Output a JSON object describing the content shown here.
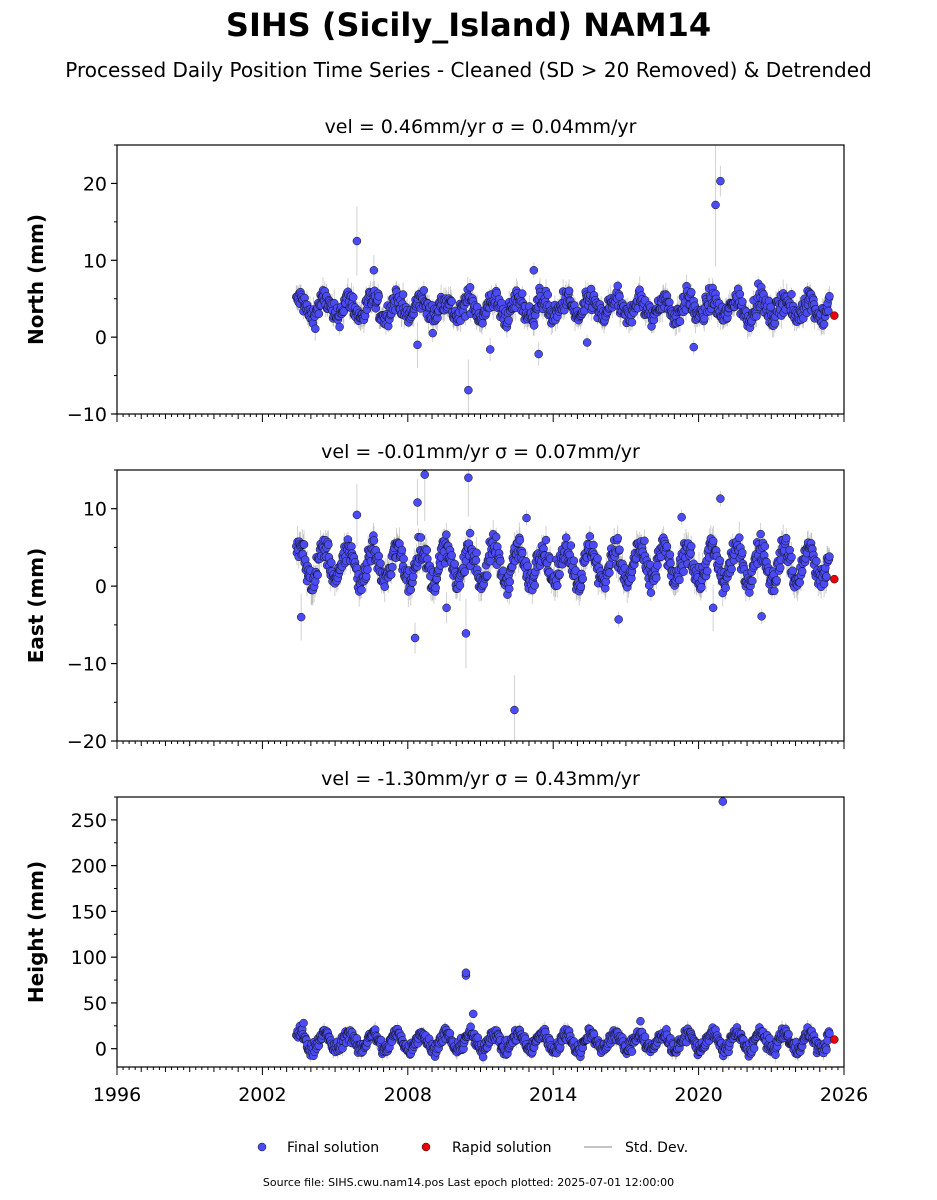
{
  "title": "SIHS (Sicily_Island) NAM14",
  "subtitle": "Processed Daily Position Time Series - Cleaned (SD > 20 Removed) & Detrended",
  "source_note": "Source file: SIHS.cwu.nam14.pos  Last epoch plotted: 2025-07-01 12:00:00",
  "colors": {
    "final": "#4b4bf5",
    "rapid": "#e8000b",
    "errorbar": "#b0b0b0",
    "edge": "#111111"
  },
  "legend": {
    "final": "Final solution",
    "rapid": "Rapid solution",
    "std": "Std. Dev."
  },
  "chart_data": [
    {
      "type": "scatter",
      "title": "vel = 0.46mm/yr   σ = 0.04mm/yr",
      "ylabel": "North (mm)",
      "xlim": [
        1996,
        2026
      ],
      "ylim": [
        -10,
        25
      ],
      "yticks": [
        -10,
        0,
        10,
        20
      ],
      "ytick_labels": [
        "−10",
        "0",
        "10",
        "20"
      ],
      "xticks": [
        1996,
        2002,
        2008,
        2014,
        2020,
        2026
      ],
      "data_span": [
        2003.4,
        2025.4
      ],
      "band": {
        "center": 3.8,
        "amplitude": 1.2,
        "spread": 1.2
      },
      "outliers": [
        {
          "x": 2005.9,
          "y": 12.5,
          "sd": 4.5
        },
        {
          "x": 2006.6,
          "y": 8.7,
          "sd": 2.0
        },
        {
          "x": 2008.4,
          "y": -1.0,
          "sd": 3.0
        },
        {
          "x": 2010.5,
          "y": -6.9,
          "sd": 4.0
        },
        {
          "x": 2011.4,
          "y": -1.6,
          "sd": 1.5
        },
        {
          "x": 2013.2,
          "y": 8.7,
          "sd": 1.0
        },
        {
          "x": 2013.4,
          "y": -2.2,
          "sd": 1.5
        },
        {
          "x": 2015.4,
          "y": -0.7,
          "sd": 1.0
        },
        {
          "x": 2019.8,
          "y": -1.3,
          "sd": 1.0
        },
        {
          "x": 2020.7,
          "y": 17.2,
          "sd": 8.0
        },
        {
          "x": 2020.9,
          "y": 20.3,
          "sd": 2.0
        }
      ],
      "rapid": [
        {
          "x": 2025.6,
          "y": 2.8
        }
      ]
    },
    {
      "type": "scatter",
      "title": "vel = -0.01mm/yr   σ = 0.07mm/yr",
      "ylabel": "East (mm)",
      "xlim": [
        1996,
        2026
      ],
      "ylim": [
        -20,
        15
      ],
      "yticks": [
        -20,
        -10,
        0,
        10
      ],
      "ytick_labels": [
        "−20",
        "−10",
        "0",
        "10"
      ],
      "xticks": [
        1996,
        2002,
        2008,
        2014,
        2020,
        2026
      ],
      "data_span": [
        2003.4,
        2025.4
      ],
      "band": {
        "center": 2.8,
        "amplitude": 2.2,
        "spread": 1.4
      },
      "outliers": [
        {
          "x": 2003.6,
          "y": -4.0,
          "sd": 3.0
        },
        {
          "x": 2005.9,
          "y": 9.2,
          "sd": 4.0
        },
        {
          "x": 2008.3,
          "y": -6.7,
          "sd": 2.0
        },
        {
          "x": 2008.4,
          "y": 10.8,
          "sd": 3.0
        },
        {
          "x": 2008.7,
          "y": 14.4,
          "sd": 6.0
        },
        {
          "x": 2009.6,
          "y": -2.8,
          "sd": 2.0
        },
        {
          "x": 2010.4,
          "y": -6.1,
          "sd": 4.5
        },
        {
          "x": 2010.5,
          "y": 14.0,
          "sd": 5.0
        },
        {
          "x": 2012.4,
          "y": -16.0,
          "sd": 4.5
        },
        {
          "x": 2012.9,
          "y": 8.8,
          "sd": 1.0
        },
        {
          "x": 2016.7,
          "y": -4.3,
          "sd": 1.0
        },
        {
          "x": 2019.3,
          "y": 8.9,
          "sd": 1.0
        },
        {
          "x": 2020.6,
          "y": -2.8,
          "sd": 3.0
        },
        {
          "x": 2020.9,
          "y": 11.3,
          "sd": 1.0
        },
        {
          "x": 2022.6,
          "y": -3.9,
          "sd": 1.0
        }
      ],
      "rapid": [
        {
          "x": 2025.6,
          "y": 0.9
        }
      ]
    },
    {
      "type": "scatter",
      "title": "vel = -1.30mm/yr   σ = 0.43mm/yr",
      "ylabel": "Height (mm)",
      "xlim": [
        1996,
        2026
      ],
      "ylim": [
        -20,
        275
      ],
      "yticks": [
        0,
        50,
        100,
        150,
        200,
        250
      ],
      "ytick_labels": [
        "0",
        "50",
        "100",
        "150",
        "200",
        "250"
      ],
      "xticks": [
        1996,
        2002,
        2008,
        2014,
        2020,
        2026
      ],
      "xtick_labels": [
        "1996",
        "2002",
        "2008",
        "2014",
        "2020",
        "2026"
      ],
      "data_span": [
        2003.4,
        2025.4
      ],
      "band": {
        "center": 8,
        "amplitude": 9,
        "spread": 6
      },
      "outliers": [
        {
          "x": 2003.7,
          "y": 28,
          "sd": 4
        },
        {
          "x": 2010.4,
          "y": 80,
          "sd": 6
        },
        {
          "x": 2010.4,
          "y": 83,
          "sd": 4
        },
        {
          "x": 2010.7,
          "y": 38,
          "sd": 4
        },
        {
          "x": 2017.6,
          "y": 30,
          "sd": 4
        },
        {
          "x": 2021.0,
          "y": 270,
          "sd": 8
        }
      ],
      "rapid": [
        {
          "x": 2025.6,
          "y": 10
        }
      ]
    }
  ]
}
